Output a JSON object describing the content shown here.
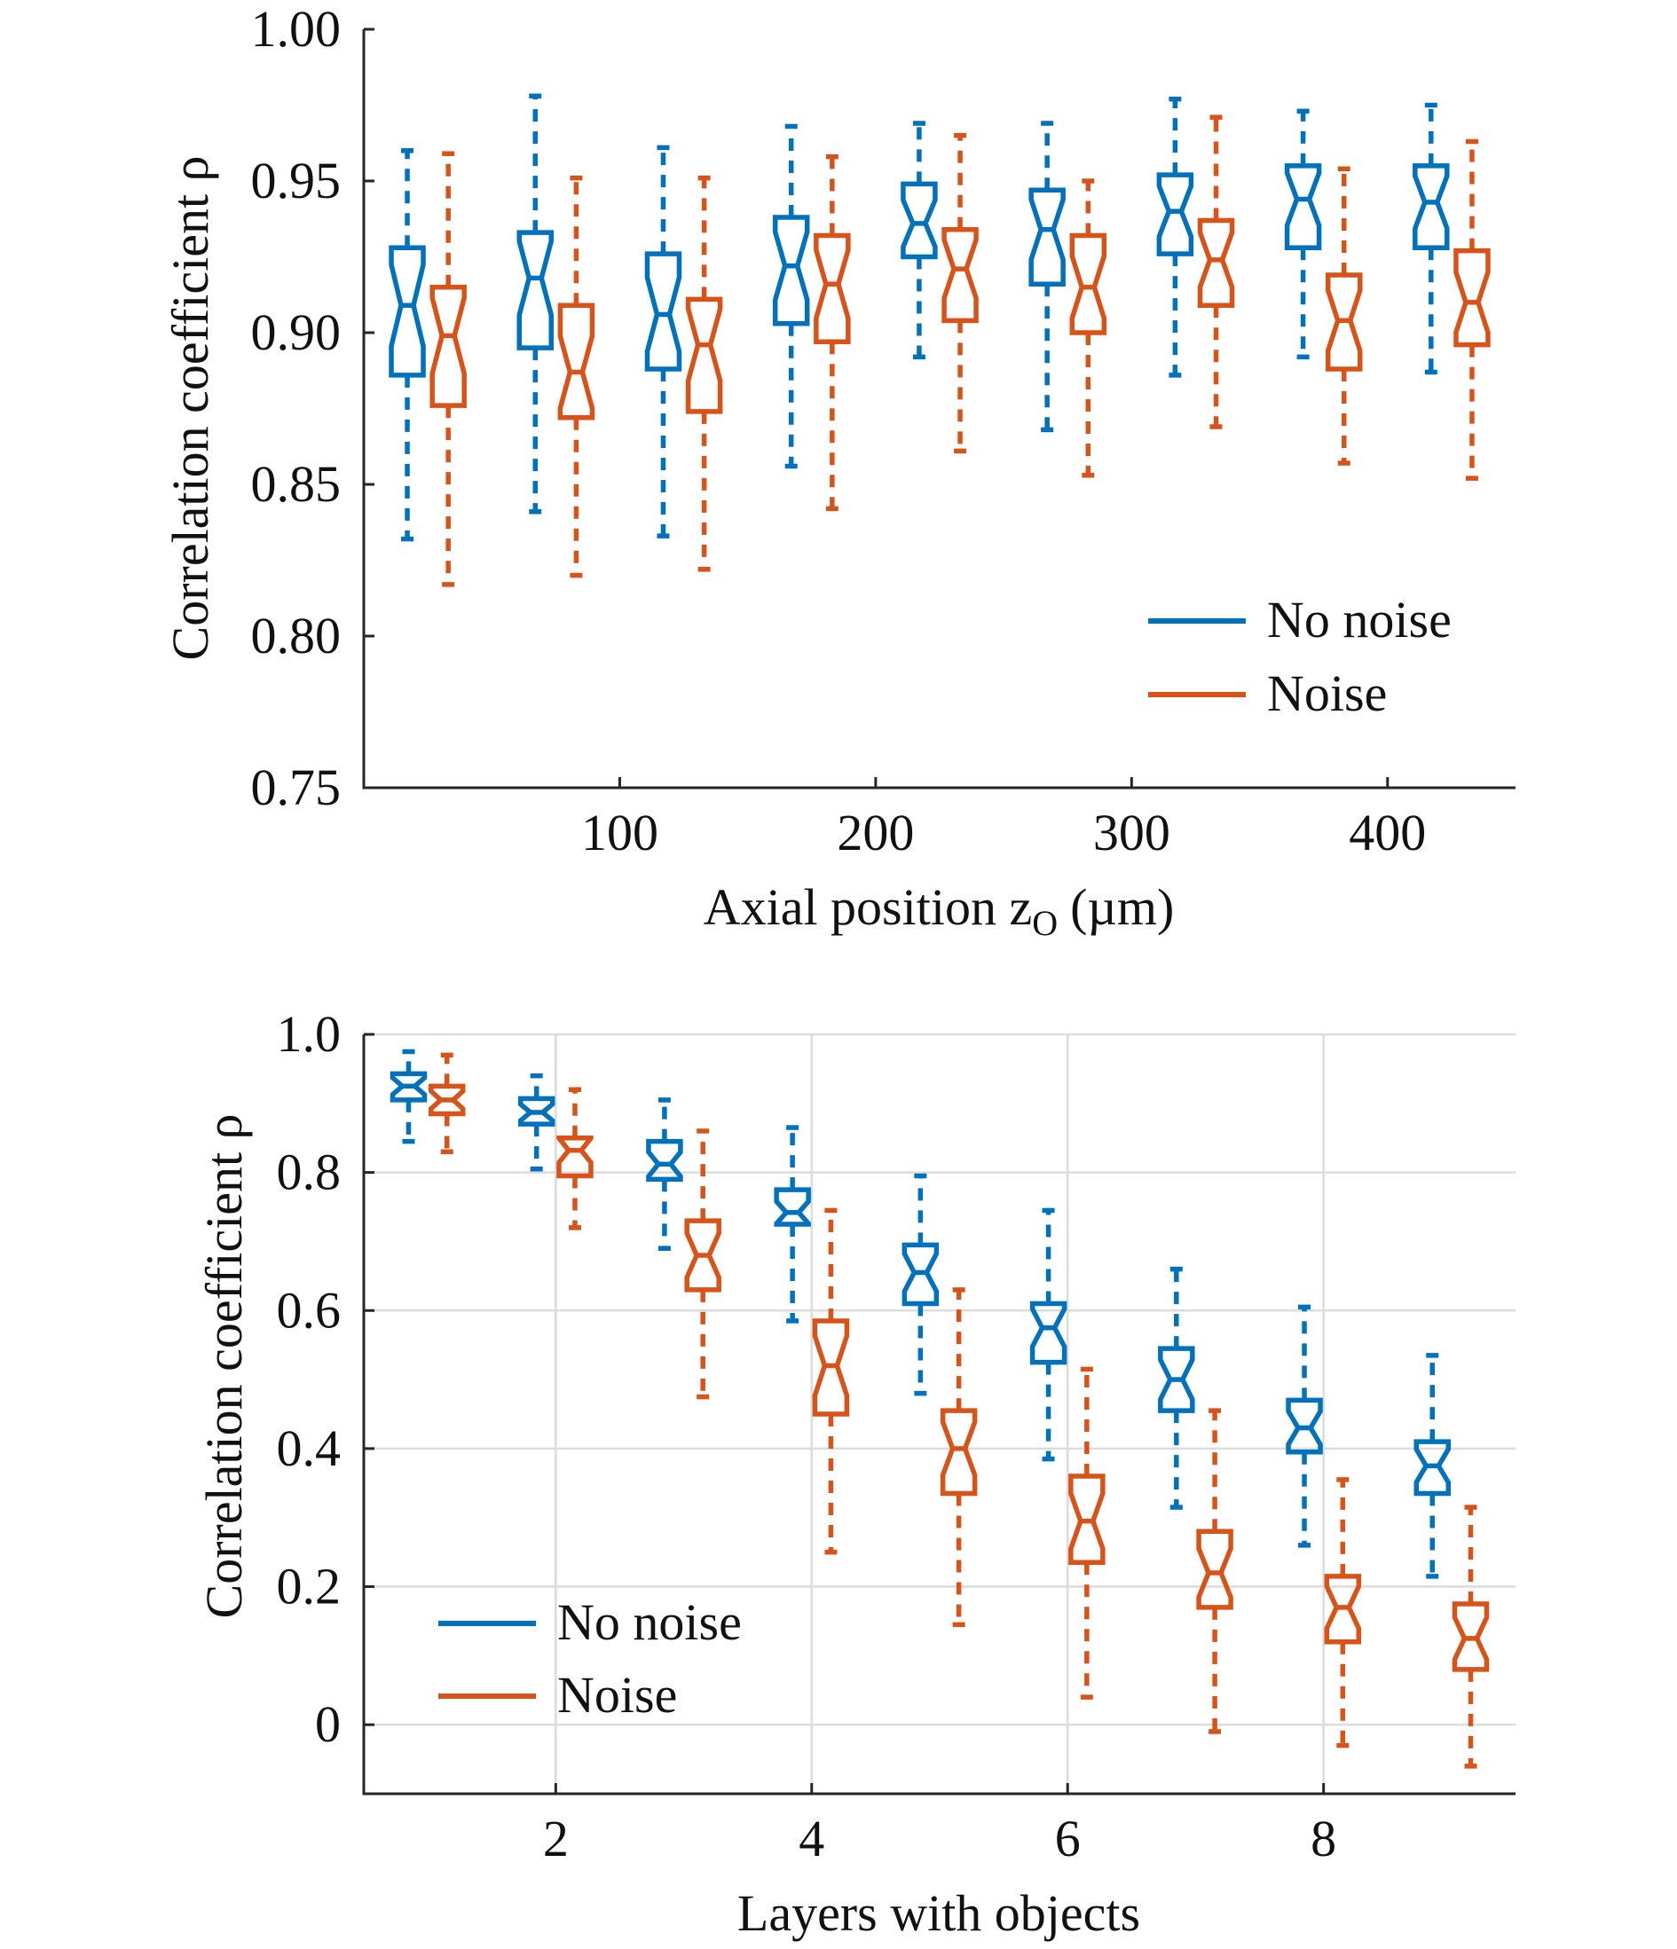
{
  "colors": {
    "no_noise": "#0072BD",
    "noise": "#D95319"
  },
  "chart_data": [
    {
      "type": "box",
      "notched": true,
      "xlabel": "Axial position z",
      "xlabel_subscript": "O",
      "xlabel_unit": "(µm)",
      "ylabel": "Correlation coefficient ρ",
      "ylim": [
        0.75,
        1.0
      ],
      "xlim": [
        0,
        450
      ],
      "grid": false,
      "legend_position": "bottom-right",
      "yticks": [
        "0.75",
        "0.80",
        "0.85",
        "0.90",
        "0.95",
        "1.00"
      ],
      "ytick_values": [
        0.75,
        0.8,
        0.85,
        0.9,
        0.95,
        1.0
      ],
      "xticks": [
        "100",
        "200",
        "300",
        "400"
      ],
      "xtick_values": [
        100,
        200,
        300,
        400
      ],
      "series": [
        {
          "name": "No noise",
          "color_key": "no_noise",
          "x": [
            17,
            67,
            117,
            167,
            217,
            267,
            317,
            367,
            417
          ],
          "boxes": [
            {
              "min": 0.832,
              "q1": 0.886,
              "median": 0.909,
              "q3": 0.928,
              "max": 0.96
            },
            {
              "min": 0.841,
              "q1": 0.895,
              "median": 0.918,
              "q3": 0.933,
              "max": 0.978
            },
            {
              "min": 0.833,
              "q1": 0.888,
              "median": 0.906,
              "q3": 0.926,
              "max": 0.961
            },
            {
              "min": 0.856,
              "q1": 0.903,
              "median": 0.922,
              "q3": 0.938,
              "max": 0.968
            },
            {
              "min": 0.892,
              "q1": 0.925,
              "median": 0.936,
              "q3": 0.949,
              "max": 0.969
            },
            {
              "min": 0.868,
              "q1": 0.916,
              "median": 0.934,
              "q3": 0.947,
              "max": 0.969
            },
            {
              "min": 0.886,
              "q1": 0.926,
              "median": 0.94,
              "q3": 0.952,
              "max": 0.977
            },
            {
              "min": 0.892,
              "q1": 0.928,
              "median": 0.944,
              "q3": 0.955,
              "max": 0.973
            },
            {
              "min": 0.887,
              "q1": 0.928,
              "median": 0.943,
              "q3": 0.955,
              "max": 0.975
            }
          ]
        },
        {
          "name": "Noise",
          "color_key": "noise",
          "x": [
            33,
            83,
            133,
            183,
            233,
            283,
            333,
            383,
            433
          ],
          "boxes": [
            {
              "min": 0.817,
              "q1": 0.876,
              "median": 0.899,
              "q3": 0.915,
              "max": 0.959
            },
            {
              "min": 0.82,
              "q1": 0.872,
              "median": 0.887,
              "q3": 0.909,
              "max": 0.951
            },
            {
              "min": 0.822,
              "q1": 0.874,
              "median": 0.896,
              "q3": 0.911,
              "max": 0.951
            },
            {
              "min": 0.842,
              "q1": 0.897,
              "median": 0.916,
              "q3": 0.932,
              "max": 0.958
            },
            {
              "min": 0.861,
              "q1": 0.904,
              "median": 0.921,
              "q3": 0.934,
              "max": 0.965
            },
            {
              "min": 0.853,
              "q1": 0.9,
              "median": 0.915,
              "q3": 0.932,
              "max": 0.95
            },
            {
              "min": 0.869,
              "q1": 0.909,
              "median": 0.924,
              "q3": 0.937,
              "max": 0.971
            },
            {
              "min": 0.857,
              "q1": 0.888,
              "median": 0.904,
              "q3": 0.919,
              "max": 0.954
            },
            {
              "min": 0.852,
              "q1": 0.896,
              "median": 0.91,
              "q3": 0.927,
              "max": 0.963
            }
          ]
        }
      ]
    },
    {
      "type": "box",
      "notched": true,
      "xlabel": "Layers with objects",
      "ylabel": "Correlation coefficient ρ",
      "ylim": [
        -0.1,
        1.0
      ],
      "xlim": [
        0.5,
        9.5
      ],
      "grid": true,
      "legend_position": "bottom-left",
      "yticks": [
        "0",
        "0.2",
        "0.4",
        "0.6",
        "0.8",
        "1.0"
      ],
      "ytick_values": [
        0,
        0.2,
        0.4,
        0.6,
        0.8,
        1.0
      ],
      "xticks": [
        "2",
        "4",
        "6",
        "8"
      ],
      "xtick_values": [
        2,
        4,
        6,
        8
      ],
      "series": [
        {
          "name": "No noise",
          "color_key": "no_noise",
          "x": [
            0.85,
            1.85,
            2.85,
            3.85,
            4.85,
            5.85,
            6.85,
            7.85,
            8.85
          ],
          "boxes": [
            {
              "min": 0.845,
              "q1": 0.905,
              "median": 0.925,
              "q3": 0.943,
              "max": 0.975
            },
            {
              "min": 0.805,
              "q1": 0.87,
              "median": 0.887,
              "q3": 0.907,
              "max": 0.94
            },
            {
              "min": 0.69,
              "q1": 0.79,
              "median": 0.812,
              "q3": 0.845,
              "max": 0.905
            },
            {
              "min": 0.585,
              "q1": 0.725,
              "median": 0.742,
              "q3": 0.775,
              "max": 0.865
            },
            {
              "min": 0.48,
              "q1": 0.61,
              "median": 0.655,
              "q3": 0.695,
              "max": 0.795
            },
            {
              "min": 0.385,
              "q1": 0.525,
              "median": 0.575,
              "q3": 0.61,
              "max": 0.745
            },
            {
              "min": 0.315,
              "q1": 0.455,
              "median": 0.5,
              "q3": 0.545,
              "max": 0.66
            },
            {
              "min": 0.26,
              "q1": 0.395,
              "median": 0.43,
              "q3": 0.47,
              "max": 0.605
            },
            {
              "min": 0.215,
              "q1": 0.335,
              "median": 0.375,
              "q3": 0.41,
              "max": 0.535
            }
          ]
        },
        {
          "name": "Noise",
          "color_key": "noise",
          "x": [
            1.15,
            2.15,
            3.15,
            4.15,
            5.15,
            6.15,
            7.15,
            8.15,
            9.15
          ],
          "boxes": [
            {
              "min": 0.83,
              "q1": 0.885,
              "median": 0.905,
              "q3": 0.925,
              "max": 0.97
            },
            {
              "min": 0.72,
              "q1": 0.795,
              "median": 0.832,
              "q3": 0.85,
              "max": 0.92
            },
            {
              "min": 0.475,
              "q1": 0.63,
              "median": 0.68,
              "q3": 0.73,
              "max": 0.86
            },
            {
              "min": 0.25,
              "q1": 0.45,
              "median": 0.52,
              "q3": 0.585,
              "max": 0.745
            },
            {
              "min": 0.145,
              "q1": 0.335,
              "median": 0.4,
              "q3": 0.455,
              "max": 0.63
            },
            {
              "min": 0.04,
              "q1": 0.235,
              "median": 0.295,
              "q3": 0.36,
              "max": 0.515
            },
            {
              "min": -0.01,
              "q1": 0.17,
              "median": 0.22,
              "q3": 0.28,
              "max": 0.455
            },
            {
              "min": -0.03,
              "q1": 0.12,
              "median": 0.17,
              "q3": 0.215,
              "max": 0.355
            },
            {
              "min": -0.06,
              "q1": 0.08,
              "median": 0.125,
              "q3": 0.175,
              "max": 0.315
            }
          ]
        }
      ]
    }
  ]
}
